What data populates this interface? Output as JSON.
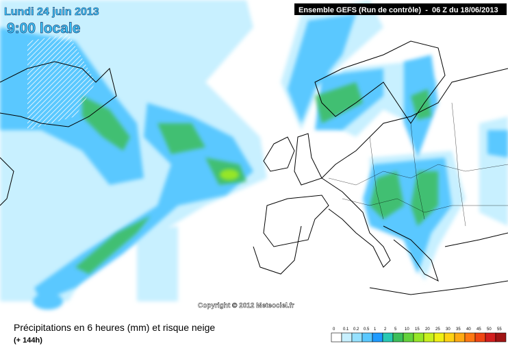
{
  "header": {
    "date": "Lundi 24 juin 2013",
    "time": "9:00 locale",
    "model": "Ensemble GEFS (Run de contrôle)  -  06 Z du 18/06/2013"
  },
  "copyright": "Copyright © 2012 Meteociel.fr",
  "caption": {
    "title": "Précipitations en 6 heures (mm) et risque neige",
    "subtitle": "(+ 144h)"
  },
  "legend": [
    {
      "label": 0,
      "color": "#ffffff"
    },
    {
      "label": 0.1,
      "color": "#c8f0ff"
    },
    {
      "label": 0.2,
      "color": "#96e1ff"
    },
    {
      "label": 0.5,
      "color": "#5ac8ff"
    },
    {
      "label": 1,
      "color": "#1e9bff"
    },
    {
      "label": 2,
      "color": "#28c8b4"
    },
    {
      "label": 5,
      "color": "#3cbe5a"
    },
    {
      "label": 10,
      "color": "#64d23c"
    },
    {
      "label": 15,
      "color": "#96e628"
    },
    {
      "label": 20,
      "color": "#c8f01e"
    },
    {
      "label": 25,
      "color": "#f0f014"
    },
    {
      "label": 30,
      "color": "#ffd214"
    },
    {
      "label": 35,
      "color": "#ffaa14"
    },
    {
      "label": 40,
      "color": "#ff7814"
    },
    {
      "label": 45,
      "color": "#f04614"
    },
    {
      "label": 50,
      "color": "#d21e1e"
    },
    {
      "label": 55,
      "color": "#a01414"
    }
  ]
}
